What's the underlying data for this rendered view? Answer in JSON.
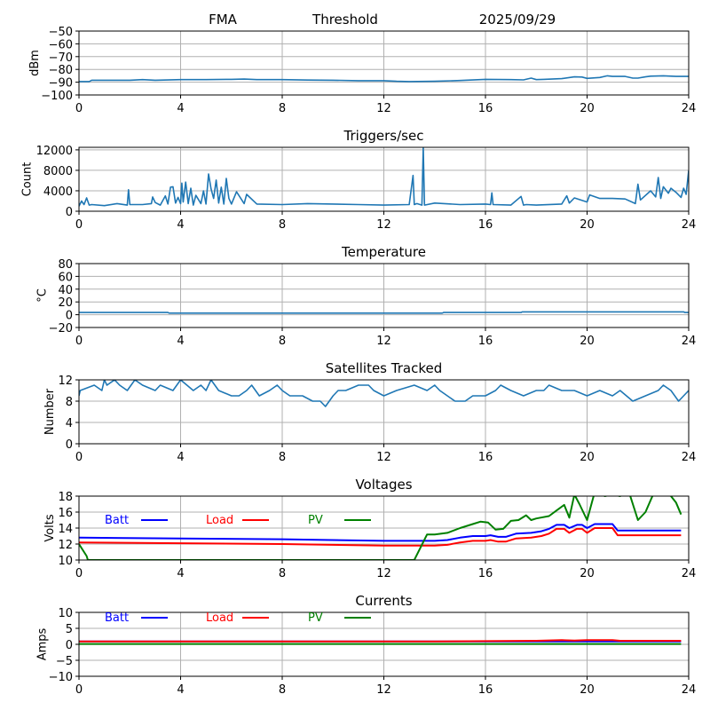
{
  "header": {
    "station": "FMA",
    "mode": "Threshold",
    "date": "2025/09/29"
  },
  "chart_data": [
    {
      "id": "signal",
      "type": "line",
      "title": "",
      "xlabel": "",
      "ylabel": "dBm",
      "xlim": [
        0,
        24
      ],
      "ylim": [
        -100,
        -50
      ],
      "xticks": [
        0,
        4,
        8,
        12,
        16,
        20,
        24
      ],
      "yticks": [
        -100,
        -90,
        -80,
        -70,
        -60,
        -50
      ],
      "ytick_labels": [
        "−100",
        "−90",
        "−80",
        "−70",
        "−60",
        "−50"
      ],
      "grid": true,
      "series": [
        {
          "name": "dBm",
          "color": "#1f77b4",
          "x": [
            0,
            0.4,
            0.5,
            1,
            2,
            2.5,
            3,
            4,
            5,
            6,
            6.5,
            7,
            8,
            9,
            10,
            11,
            12,
            12.5,
            13,
            14,
            15,
            16,
            17,
            17.5,
            17.8,
            18,
            18.3,
            19,
            19.5,
            19.8,
            20,
            20.5,
            20.8,
            21,
            21.5,
            21.8,
            22,
            22.3,
            22.5,
            23,
            23.5,
            24
          ],
          "y": [
            -89.5,
            -89.5,
            -88.5,
            -88.5,
            -88.5,
            -88,
            -88.5,
            -88,
            -88,
            -87.8,
            -87.6,
            -88,
            -88,
            -88.3,
            -88.5,
            -88.8,
            -88.8,
            -89.3,
            -89.5,
            -89.3,
            -88.7,
            -87.8,
            -88,
            -88.2,
            -86.8,
            -88,
            -87.8,
            -87.2,
            -85.8,
            -86,
            -87,
            -86.3,
            -85,
            -85.5,
            -85.5,
            -86.8,
            -86.8,
            -85.8,
            -85.3,
            -85,
            -85.5,
            -85.5
          ]
        }
      ]
    },
    {
      "id": "triggers",
      "type": "line",
      "title": "Triggers/sec",
      "xlabel": "",
      "ylabel": "Count",
      "xlim": [
        0,
        24
      ],
      "ylim": [
        0,
        12500
      ],
      "xticks": [
        0,
        4,
        8,
        12,
        16,
        20,
        24
      ],
      "yticks": [
        0,
        4000,
        8000,
        12000
      ],
      "ytick_labels": [
        "0",
        "4000",
        "8000",
        "12000"
      ],
      "grid": true,
      "series": [
        {
          "name": "Count",
          "color": "#1f77b4",
          "x": [
            0,
            0.1,
            0.2,
            0.3,
            0.4,
            0.5,
            1,
            1.5,
            1.9,
            1.95,
            2.0,
            2.5,
            2.85,
            2.9,
            3.0,
            3.2,
            3.4,
            3.5,
            3.6,
            3.7,
            3.8,
            3.9,
            4.0,
            4.05,
            4.1,
            4.2,
            4.3,
            4.4,
            4.5,
            4.6,
            4.8,
            4.9,
            5.0,
            5.1,
            5.2,
            5.3,
            5.4,
            5.5,
            5.6,
            5.7,
            5.8,
            5.9,
            6.0,
            6.2,
            6.5,
            6.6,
            7,
            8,
            9,
            10,
            11,
            12,
            13,
            13.15,
            13.2,
            13.3,
            13.5,
            13.55,
            13.6,
            14,
            15,
            16,
            16.2,
            16.25,
            16.3,
            17,
            17.4,
            17.5,
            17.6,
            18,
            19,
            19.2,
            19.3,
            19.5,
            20,
            20.1,
            20.5,
            21,
            21.5,
            21.9,
            22,
            22.1,
            22.5,
            22.7,
            22.8,
            22.9,
            23,
            23.2,
            23.3,
            23.5,
            23.7,
            23.8,
            23.9,
            24
          ],
          "y": [
            1000,
            2000,
            1300,
            2600,
            1200,
            1300,
            1100,
            1500,
            1200,
            4200,
            1300,
            1300,
            1500,
            2800,
            1700,
            1200,
            3000,
            1400,
            4700,
            4800,
            1600,
            2700,
            1500,
            5500,
            1800,
            5700,
            1500,
            4500,
            1200,
            3100,
            1500,
            4000,
            1400,
            7300,
            4400,
            2500,
            6100,
            1600,
            4700,
            1400,
            6400,
            2500,
            1400,
            3800,
            1500,
            3300,
            1400,
            1300,
            1500,
            1400,
            1300,
            1200,
            1300,
            7000,
            1300,
            1500,
            1200,
            12500,
            1200,
            1600,
            1300,
            1400,
            1300,
            3600,
            1300,
            1200,
            2900,
            1200,
            1300,
            1200,
            1400,
            3000,
            1600,
            2600,
            1800,
            3200,
            2500,
            2500,
            2400,
            1500,
            5300,
            2200,
            4000,
            2800,
            6600,
            2500,
            4800,
            3500,
            4500,
            3700,
            2700,
            4500,
            3300,
            8000
          ]
        }
      ]
    },
    {
      "id": "temperature",
      "type": "line",
      "title": "Temperature",
      "xlabel": "",
      "ylabel": "°C",
      "xlim": [
        0,
        24
      ],
      "ylim": [
        -20,
        80
      ],
      "xticks": [
        0,
        4,
        8,
        12,
        16,
        20,
        24
      ],
      "yticks": [
        -20,
        0,
        20,
        40,
        60,
        80
      ],
      "ytick_labels": [
        "−20",
        "0",
        "20",
        "40",
        "60",
        "80"
      ],
      "grid": true,
      "series": [
        {
          "name": "Temperature",
          "color": "#1f77b4",
          "x": [
            0,
            3.5,
            3.55,
            14.3,
            14.35,
            17.4,
            17.45,
            23.8,
            23.85,
            24
          ],
          "y": [
            3.5,
            3.5,
            2.5,
            2.5,
            3.5,
            3.5,
            4.5,
            4.5,
            3.5,
            3.5
          ]
        }
      ]
    },
    {
      "id": "satellites",
      "type": "line",
      "title": "Satellites Tracked",
      "xlabel": "",
      "ylabel": "Number",
      "xlim": [
        0,
        24
      ],
      "ylim": [
        0,
        12
      ],
      "xticks": [
        0,
        4,
        8,
        12,
        16,
        20,
        24
      ],
      "yticks": [
        0,
        4,
        8,
        12
      ],
      "ytick_labels": [
        "0",
        "4",
        "8",
        "12"
      ],
      "grid": true,
      "series": [
        {
          "name": "Number",
          "color": "#1f77b4",
          "x": [
            0,
            0.05,
            0.6,
            0.9,
            1.0,
            1.1,
            1.4,
            1.6,
            1.9,
            2.2,
            2.5,
            3.0,
            3.2,
            3.7,
            4.0,
            4.5,
            4.8,
            5.0,
            5.2,
            5.5,
            6.0,
            6.3,
            6.6,
            6.8,
            7.1,
            7.5,
            7.8,
            8.0,
            8.3,
            8.8,
            9.2,
            9.5,
            9.7,
            10.0,
            10.2,
            10.5,
            11.0,
            11.4,
            11.6,
            12.0,
            12.5,
            13.2,
            13.7,
            14.0,
            14.2,
            14.8,
            15.2,
            15.5,
            16.0,
            16.4,
            16.6,
            17.0,
            17.5,
            18.0,
            18.3,
            18.5,
            19.0,
            19.5,
            20.0,
            20.5,
            21.0,
            21.3,
            21.8,
            22.3,
            22.8,
            23.0,
            23.3,
            23.6,
            24
          ],
          "y": [
            9,
            10,
            11,
            10,
            12,
            11,
            12,
            11,
            10,
            12,
            11,
            10,
            11,
            10,
            12,
            10,
            11,
            10,
            12,
            10,
            9,
            9,
            10,
            11,
            9,
            10,
            11,
            10,
            9,
            9,
            8,
            8,
            7,
            9,
            10,
            10,
            11,
            11,
            10,
            9,
            10,
            11,
            10,
            11,
            10,
            8,
            8,
            9,
            9,
            10,
            11,
            10,
            9,
            10,
            10,
            11,
            10,
            10,
            9,
            10,
            9,
            10,
            8,
            9,
            10,
            11,
            10,
            8,
            10
          ]
        }
      ]
    },
    {
      "id": "voltages",
      "type": "line",
      "title": "Voltages",
      "xlabel": "",
      "ylabel": "Volts",
      "xlim": [
        0,
        24
      ],
      "ylim": [
        10,
        18
      ],
      "xticks": [
        0,
        4,
        8,
        12,
        16,
        20,
        24
      ],
      "yticks": [
        10,
        12,
        14,
        16,
        18
      ],
      "ytick_labels": [
        "10",
        "12",
        "14",
        "16",
        "18"
      ],
      "grid": true,
      "legend": "inside-top-left-row",
      "series": [
        {
          "name": "Batt",
          "color": "#0000ff",
          "x": [
            0,
            4,
            8,
            12,
            13,
            14,
            14.5,
            15,
            15.5,
            16,
            16.2,
            16.5,
            16.8,
            17.2,
            17.8,
            18.2,
            18.5,
            18.8,
            19.1,
            19.3,
            19.6,
            19.8,
            20.0,
            20.3,
            20.6,
            21.0,
            21.2,
            22,
            23,
            23.7
          ],
          "y": [
            12.8,
            12.7,
            12.6,
            12.4,
            12.4,
            12.4,
            12.5,
            12.8,
            13.0,
            13.0,
            13.1,
            12.9,
            12.9,
            13.3,
            13.4,
            13.6,
            13.9,
            14.4,
            14.4,
            14.0,
            14.4,
            14.4,
            14.0,
            14.5,
            14.5,
            14.5,
            13.7,
            13.7,
            13.7,
            13.7
          ]
        },
        {
          "name": "Load",
          "color": "#ff0000",
          "x": [
            0,
            4,
            8,
            12,
            13,
            14,
            14.5,
            15,
            15.5,
            16,
            16.2,
            16.5,
            16.8,
            17.2,
            17.8,
            18.2,
            18.5,
            18.8,
            19.1,
            19.3,
            19.6,
            19.8,
            20.0,
            20.3,
            20.6,
            21.0,
            21.2,
            22,
            23,
            23.7
          ],
          "y": [
            12.2,
            12.1,
            12.0,
            11.8,
            11.8,
            11.8,
            11.9,
            12.2,
            12.4,
            12.4,
            12.5,
            12.3,
            12.3,
            12.7,
            12.8,
            13.0,
            13.3,
            13.9,
            13.9,
            13.4,
            13.9,
            13.9,
            13.4,
            14.0,
            14.0,
            14.0,
            13.1,
            13.1,
            13.1,
            13.1
          ]
        },
        {
          "name": "PV",
          "color": "#008000",
          "x": [
            0,
            0.3,
            0.35,
            13.2,
            13.7,
            14.0,
            14.5,
            15.0,
            15.5,
            15.8,
            16.1,
            16.4,
            16.7,
            17.0,
            17.3,
            17.6,
            17.8,
            18.0,
            18.5,
            18.8,
            19.1,
            19.3,
            19.5,
            19.7,
            20.0,
            20.3,
            20.7,
            21.0,
            21.3,
            21.6,
            22.0,
            22.3,
            22.6,
            23.0,
            23.3,
            23.5,
            23.7
          ],
          "y": [
            12.0,
            10.5,
            10.0,
            10.0,
            13.2,
            13.2,
            13.4,
            14.0,
            14.5,
            14.8,
            14.7,
            13.8,
            13.9,
            14.9,
            15.0,
            15.6,
            15.0,
            15.2,
            15.5,
            16.2,
            16.9,
            15.3,
            18.2,
            17.0,
            15.0,
            18.5,
            18.0,
            18.2,
            18.0,
            19.0,
            15.0,
            16.0,
            18.2,
            18.4,
            18.0,
            17.2,
            15.7
          ]
        }
      ]
    },
    {
      "id": "currents",
      "type": "line",
      "title": "Currents",
      "xlabel": "",
      "ylabel": "Amps",
      "xlim": [
        0,
        24
      ],
      "ylim": [
        -10,
        10
      ],
      "xticks": [
        0,
        4,
        8,
        12,
        16,
        20,
        24
      ],
      "yticks": [
        -10,
        -5,
        0,
        5,
        10
      ],
      "ytick_labels": [
        "−10",
        "−5",
        "0",
        "5",
        "10"
      ],
      "grid": true,
      "legend": "inside-top-left-row",
      "series": [
        {
          "name": "Batt",
          "color": "#0000ff",
          "x": [
            0,
            23.7
          ],
          "y": [
            0.9,
            0.9
          ]
        },
        {
          "name": "Load",
          "color": "#ff0000",
          "x": [
            0,
            14,
            16,
            18,
            19,
            19.5,
            20,
            20.5,
            21,
            21.3,
            23.7
          ],
          "y": [
            0.9,
            0.9,
            1.0,
            1.1,
            1.3,
            1.2,
            1.3,
            1.3,
            1.3,
            1.1,
            1.1
          ]
        },
        {
          "name": "PV",
          "color": "#008000",
          "x": [
            0,
            23.7
          ],
          "y": [
            0.1,
            0.1
          ]
        }
      ]
    }
  ]
}
